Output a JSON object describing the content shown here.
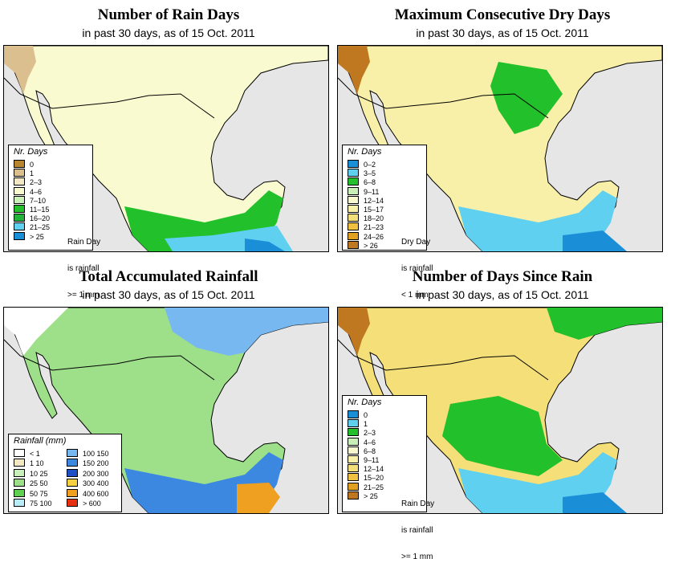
{
  "panels": [
    {
      "id": "rain_days",
      "title": "Number of Rain Days",
      "subtitle": "in past 30 days, as of  15 Oct. 2011",
      "legend_title": "Nr. Days",
      "legend": [
        {
          "label": "0",
          "color": "#b8862e"
        },
        {
          "label": "1",
          "color": "#dbbf8f"
        },
        {
          "label": "2–3",
          "color": "#f2e8c4"
        },
        {
          "label": "4–6",
          "color": "#fafad0"
        },
        {
          "label": "7–10",
          "color": "#c8f0b8"
        },
        {
          "label": "11–15",
          "color": "#22c02a"
        },
        {
          "label": "16–20",
          "color": "#1fb33a"
        },
        {
          "label": "21–25",
          "color": "#5fd0f0"
        },
        {
          "label": "> 25",
          "color": "#1a8fd8"
        }
      ],
      "note": [
        "Rain Day",
        "is rainfall",
        ">= 1 mm"
      ]
    },
    {
      "id": "max_dry",
      "title": "Maximum Consecutive Dry Days",
      "subtitle": "in past 30 days, as of  15 Oct. 2011",
      "legend_title": "Nr. Days",
      "legend": [
        {
          "label": "0–2",
          "color": "#1a8fd8"
        },
        {
          "label": "3–5",
          "color": "#5fd0f0"
        },
        {
          "label": "6–8",
          "color": "#22c02a"
        },
        {
          "label": "9–11",
          "color": "#c8f0b8"
        },
        {
          "label": "12–14",
          "color": "#fafad0"
        },
        {
          "label": "15–17",
          "color": "#f8f0a8"
        },
        {
          "label": "18–20",
          "color": "#f5df78"
        },
        {
          "label": "21–23",
          "color": "#f0c040"
        },
        {
          "label": "24–26",
          "color": "#e0a020"
        },
        {
          "label": "> 26",
          "color": "#c07820"
        }
      ],
      "note": [
        "Dry Day",
        "is rainfall",
        "< 1 mm"
      ]
    },
    {
      "id": "total_rain",
      "title": "Total Accumulated Rainfall",
      "subtitle": "in past 30 days, as of  15 Oct. 2011",
      "legend_title": "Rainfall (mm)",
      "legend_left": [
        {
          "label": "< 1",
          "color": "#ffffff"
        },
        {
          "label": "1    10",
          "color": "#f2e8c4"
        },
        {
          "label": "10    25",
          "color": "#c8f0b8"
        },
        {
          "label": "25    50",
          "color": "#9ee08a"
        },
        {
          "label": "50    75",
          "color": "#5fd050"
        },
        {
          "label": "75  100",
          "color": "#b8ecf8"
        }
      ],
      "legend_right": [
        {
          "label": "100  150",
          "color": "#78b8f0"
        },
        {
          "label": "150  200",
          "color": "#3c88e0"
        },
        {
          "label": "200  300",
          "color": "#2050c8"
        },
        {
          "label": "300  400",
          "color": "#f5d040"
        },
        {
          "label": "400  600",
          "color": "#f0a020"
        },
        {
          "label": "> 600",
          "color": "#e83010"
        }
      ]
    },
    {
      "id": "since_rain",
      "title": "Number of Days Since Rain",
      "subtitle": "in past 30 days, as of  15 Oct. 2011",
      "legend_title": "Nr. Days",
      "legend": [
        {
          "label": "0",
          "color": "#1a8fd8"
        },
        {
          "label": "1",
          "color": "#5fd0f0"
        },
        {
          "label": "2–3",
          "color": "#22c02a"
        },
        {
          "label": "4–6",
          "color": "#c8f0b8"
        },
        {
          "label": "6–8",
          "color": "#fafad0"
        },
        {
          "label": "9–11",
          "color": "#f8f0a8"
        },
        {
          "label": "12–14",
          "color": "#f5df78"
        },
        {
          "label": "15–20",
          "color": "#f0c040"
        },
        {
          "label": "21–25",
          "color": "#e0a020"
        },
        {
          "label": "> 25",
          "color": "#c07820"
        }
      ],
      "note": [
        "Rain Day",
        "is rainfall",
        ">= 1 mm"
      ]
    }
  ]
}
